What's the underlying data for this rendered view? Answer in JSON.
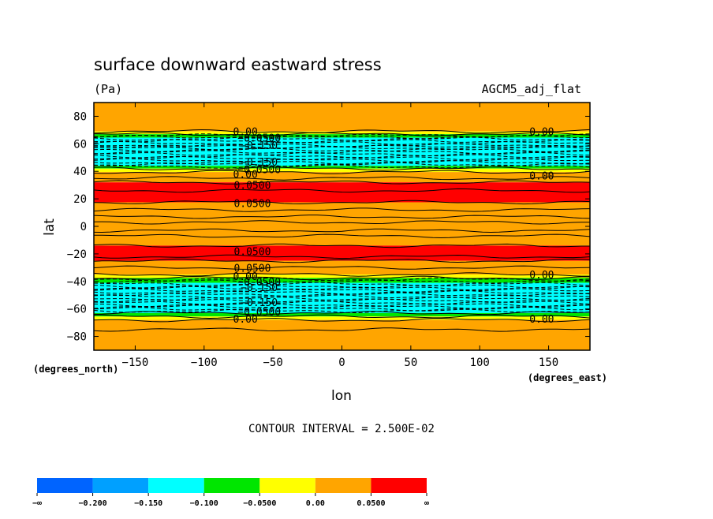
{
  "chart_data": {
    "type": "contour",
    "title": "surface downward eastward stress",
    "units": "(Pa)",
    "dataset": "AGCM5_adj_flat",
    "xlabel": "lon",
    "ylabel": "lat",
    "x_units": "(degrees_east)",
    "y_units": "(degrees_north)",
    "xlim": [
      -180,
      180
    ],
    "ylim": [
      -90,
      90
    ],
    "x_ticks": [
      -150,
      -100,
      -50,
      0,
      50,
      100,
      150
    ],
    "x_tick_labels": [
      "−150",
      "−100",
      "−50",
      "0",
      "50",
      "100",
      "150"
    ],
    "y_ticks": [
      80,
      60,
      40,
      20,
      0,
      -20,
      -40,
      -60,
      -80
    ],
    "y_tick_labels": [
      "80",
      "60",
      "40",
      "20",
      "0",
      "−20",
      "−40",
      "−60",
      "−80"
    ],
    "contour_interval_text": "CONTOUR INTERVAL = 2.500E-02",
    "colorbar": {
      "levels": [
        "−∞",
        "−0.200",
        "−0.150",
        "−0.100",
        "−0.0500",
        "0.00",
        "0.0500",
        "∞"
      ],
      "colors": [
        "#0064ff",
        "#00a0ff",
        "#00ffff",
        "#00e600",
        "#ffff00",
        "#ffa500",
        "#ff0000"
      ]
    },
    "bands": [
      {
        "lat_top": 90,
        "lat_bottom": 69,
        "value_class": 5
      },
      {
        "lat_top": 69,
        "lat_bottom": 67,
        "value_class": 4
      },
      {
        "lat_top": 67,
        "lat_bottom": 64.5,
        "value_class": 3
      },
      {
        "lat_top": 64.5,
        "lat_bottom": 44,
        "value_class": 2
      },
      {
        "lat_top": 44,
        "lat_bottom": 42,
        "value_class": 3
      },
      {
        "lat_top": 42,
        "lat_bottom": 39.5,
        "value_class": 4
      },
      {
        "lat_top": 39.5,
        "lat_bottom": 32,
        "value_class": 5
      },
      {
        "lat_top": 32,
        "lat_bottom": 17.5,
        "value_class": 6
      },
      {
        "lat_top": 17.5,
        "lat_bottom": -14,
        "value_class": 5
      },
      {
        "lat_top": -14,
        "lat_bottom": -25,
        "value_class": 6
      },
      {
        "lat_top": -25,
        "lat_bottom": -35,
        "value_class": 5
      },
      {
        "lat_top": -35,
        "lat_bottom": -37.5,
        "value_class": 4
      },
      {
        "lat_top": -37.5,
        "lat_bottom": -41,
        "value_class": 3
      },
      {
        "lat_top": -41,
        "lat_bottom": -63,
        "value_class": 2
      },
      {
        "lat_top": -63,
        "lat_bottom": -65.5,
        "value_class": 3
      },
      {
        "lat_top": -65.5,
        "lat_bottom": -68,
        "value_class": 4
      },
      {
        "lat_top": -68,
        "lat_bottom": -90,
        "value_class": 5
      }
    ],
    "solid_contours_lat": [
      69,
      67,
      42,
      39.5,
      35,
      32,
      26,
      17.5,
      12,
      7,
      3,
      -3,
      -7,
      -14,
      -22,
      -25,
      -30,
      -35,
      -37.5,
      -63,
      -65.5,
      -68,
      -75
    ],
    "dashed_contours_lat": [
      66,
      65,
      63.5,
      62,
      60.5,
      59,
      58,
      57,
      55.5,
      54,
      52.5,
      51,
      49.5,
      48,
      46.5,
      45,
      43.5,
      -38.5,
      -40,
      -42,
      -43.5,
      -45,
      -46.5,
      -48,
      -49.5,
      -51,
      -52.5,
      -54,
      -55.5,
      -57,
      -58.5,
      -60,
      -61.5
    ],
    "contour_labels": [
      {
        "text": "0.00",
        "lon": -70,
        "lat": 69
      },
      {
        "text": "0.00",
        "lon": 145,
        "lat": 69
      },
      {
        "text": "−0.0500",
        "lon": -60,
        "lat": 64.5
      },
      {
        "text": "−0.150",
        "lon": -60,
        "lat": 59
      },
      {
        "text": "−0.150",
        "lon": -60,
        "lat": 47
      },
      {
        "text": "−0.0500",
        "lon": -60,
        "lat": 41.5
      },
      {
        "text": "0.00",
        "lon": -70,
        "lat": 38
      },
      {
        "text": "0.00",
        "lon": 145,
        "lat": 37
      },
      {
        "text": "0.0500",
        "lon": -65,
        "lat": 30
      },
      {
        "text": "0.0500",
        "lon": -65,
        "lat": 17
      },
      {
        "text": "0.0500",
        "lon": -65,
        "lat": -18
      },
      {
        "text": "0.0500",
        "lon": -65,
        "lat": -30
      },
      {
        "text": "0.00",
        "lon": -70,
        "lat": -36
      },
      {
        "text": "0.00",
        "lon": 145,
        "lat": -35
      },
      {
        "text": "−0.0500",
        "lon": -60,
        "lat": -40
      },
      {
        "text": "−0.150",
        "lon": -60,
        "lat": -44
      },
      {
        "text": "−0.150",
        "lon": -60,
        "lat": -55
      },
      {
        "text": "−0.0500",
        "lon": -60,
        "lat": -62
      },
      {
        "text": "0.00",
        "lon": -70,
        "lat": -67
      },
      {
        "text": "0.00",
        "lon": 145,
        "lat": -67
      }
    ]
  }
}
